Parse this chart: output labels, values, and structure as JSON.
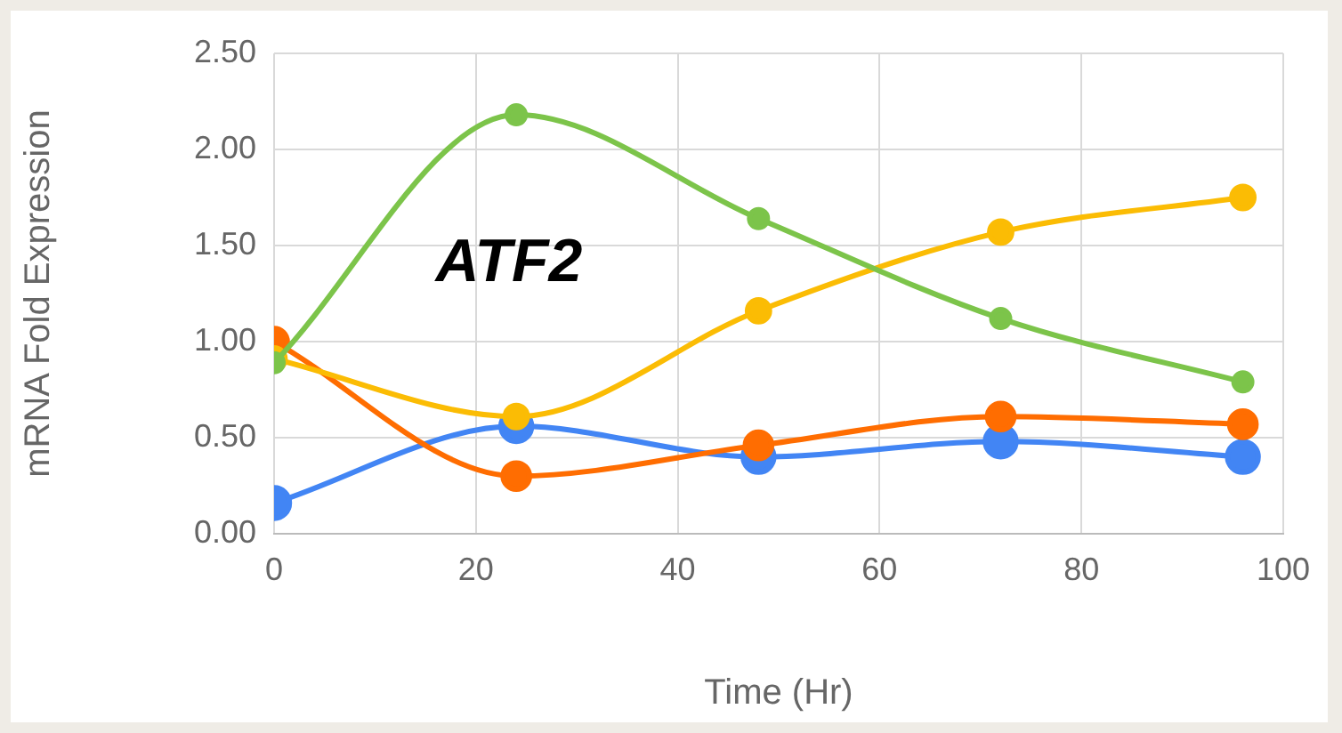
{
  "chart_data": {
    "type": "line",
    "xlabel": "Time (Hr)",
    "ylabel": "mRNA Fold Expression",
    "annotations": [
      "ATF2"
    ],
    "x": [
      0,
      24,
      48,
      72,
      96
    ],
    "series": [
      {
        "color": "#7cc44a",
        "values": [
          0.89,
          2.18,
          1.64,
          1.12,
          0.79
        ]
      },
      {
        "color": "#fbbc04",
        "values": [
          0.91,
          0.61,
          1.16,
          1.57,
          1.75
        ]
      },
      {
        "color": "#ff6d01",
        "values": [
          1.0,
          0.3,
          0.46,
          0.61,
          0.57
        ]
      },
      {
        "color": "#4285f4",
        "values": [
          0.16,
          0.56,
          0.4,
          0.48,
          0.4
        ]
      }
    ],
    "xlim": [
      0,
      100
    ],
    "xticks": [
      0,
      20,
      40,
      60,
      80,
      100
    ],
    "ylim": [
      0,
      2.5
    ],
    "yticks": [
      {
        "value": 0,
        "label": "0.00"
      },
      {
        "value": 0.5,
        "label": "0.50"
      },
      {
        "value": 1,
        "label": "1.00"
      },
      {
        "value": 1.5,
        "label": "1.50"
      },
      {
        "value": 2,
        "label": "2.00"
      },
      {
        "value": 2.5,
        "label": "2.50"
      }
    ],
    "grid": true,
    "legend": false,
    "marker": "circle",
    "line_style": "solid"
  }
}
